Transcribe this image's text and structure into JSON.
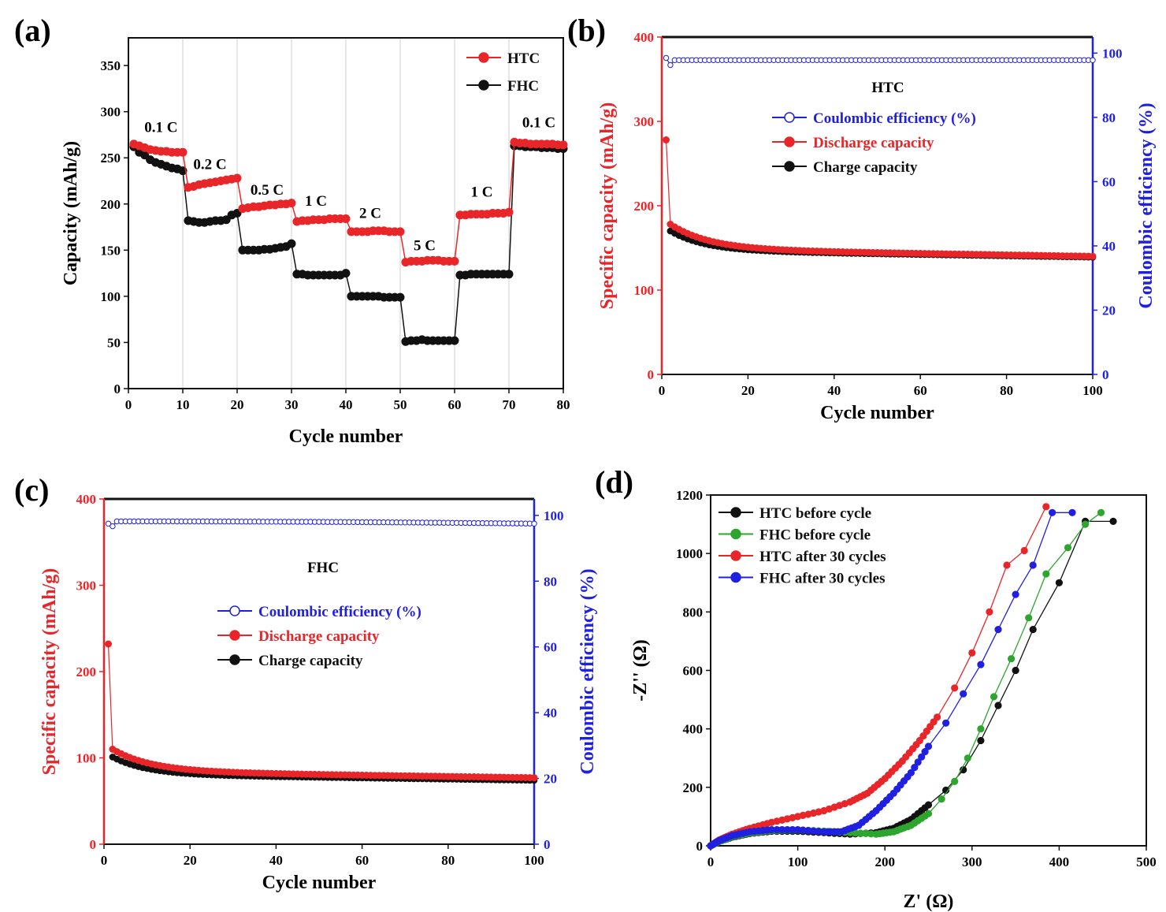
{
  "figure": {
    "colors": {
      "red": "#e8262a",
      "black": "#111111",
      "blue": "#2020e0",
      "green": "#2ea52e"
    }
  },
  "chart_data": [
    {
      "panel": "(a)",
      "type": "line",
      "xlabel": "Cycle number",
      "ylabel": "Capacity (mAh/g)",
      "xlim": [
        0,
        80
      ],
      "ylim": [
        0,
        380
      ],
      "xticks": [
        0,
        10,
        20,
        30,
        40,
        50,
        60,
        70,
        80
      ],
      "yticks": [
        0,
        50,
        100,
        150,
        200,
        250,
        300,
        350
      ],
      "grid": "vertical at every 10 cycles",
      "legend": "top-right",
      "rate_labels": [
        {
          "text": "0.1 C",
          "x": 6,
          "y": 278
        },
        {
          "text": "0.2 C",
          "x": 15,
          "y": 238
        },
        {
          "text": "0.5 C",
          "x": 25.5,
          "y": 210
        },
        {
          "text": "1 C",
          "x": 34.5,
          "y": 198
        },
        {
          "text": "2 C",
          "x": 44.5,
          "y": 185
        },
        {
          "text": "5 C",
          "x": 54.5,
          "y": 150
        },
        {
          "text": "1 C",
          "x": 65,
          "y": 208
        },
        {
          "text": "0.1 C",
          "x": 75.5,
          "y": 283
        }
      ],
      "series": [
        {
          "name": "HTC",
          "color": "#e8262a",
          "x": [
            1,
            2,
            3,
            4,
            5,
            6,
            7,
            8,
            9,
            10,
            11,
            12,
            13,
            14,
            15,
            16,
            17,
            18,
            19,
            20,
            21,
            22,
            23,
            24,
            25,
            26,
            27,
            28,
            29,
            30,
            31,
            32,
            33,
            34,
            35,
            36,
            37,
            38,
            39,
            40,
            41,
            42,
            43,
            44,
            45,
            46,
            47,
            48,
            49,
            50,
            51,
            52,
            53,
            54,
            55,
            56,
            57,
            58,
            59,
            60,
            61,
            62,
            63,
            64,
            65,
            66,
            67,
            68,
            69,
            70,
            71,
            72,
            73,
            74,
            75,
            76,
            77,
            78,
            79,
            80
          ],
          "y": [
            265,
            263,
            261,
            259,
            258,
            257,
            257,
            256,
            256,
            256,
            218,
            219,
            221,
            222,
            223,
            224,
            225,
            226,
            227,
            228,
            195,
            196,
            197,
            197,
            198,
            199,
            199,
            200,
            200,
            201,
            181,
            182,
            182,
            183,
            183,
            183,
            184,
            184,
            184,
            184,
            170,
            170,
            170,
            170,
            171,
            171,
            171,
            170,
            170,
            170,
            137,
            138,
            138,
            138,
            139,
            139,
            139,
            138,
            138,
            138,
            188,
            188,
            189,
            189,
            189,
            189,
            190,
            190,
            190,
            191,
            267,
            266,
            266,
            265,
            265,
            265,
            265,
            265,
            264,
            264
          ]
        },
        {
          "name": "FHC",
          "color": "#111111",
          "x": [
            1,
            2,
            3,
            4,
            5,
            6,
            7,
            8,
            9,
            10,
            11,
            12,
            13,
            14,
            15,
            16,
            17,
            18,
            19,
            20,
            21,
            22,
            23,
            24,
            25,
            26,
            27,
            28,
            29,
            30,
            31,
            32,
            33,
            34,
            35,
            36,
            37,
            38,
            39,
            40,
            41,
            42,
            43,
            44,
            45,
            46,
            47,
            48,
            49,
            50,
            51,
            52,
            53,
            54,
            55,
            56,
            57,
            58,
            59,
            60,
            61,
            62,
            63,
            64,
            65,
            66,
            67,
            68,
            69,
            70,
            71,
            72,
            73,
            74,
            75,
            76,
            77,
            78,
            79,
            80
          ],
          "y": [
            262,
            256,
            253,
            248,
            245,
            243,
            241,
            239,
            238,
            236,
            182,
            181,
            180,
            180,
            181,
            182,
            182,
            183,
            188,
            190,
            150,
            150,
            150,
            150,
            151,
            151,
            152,
            153,
            154,
            157,
            124,
            124,
            123,
            123,
            123,
            123,
            123,
            123,
            123,
            125,
            100,
            100,
            100,
            100,
            100,
            100,
            99,
            99,
            99,
            99,
            51,
            52,
            52,
            53,
            52,
            52,
            52,
            52,
            52,
            52,
            123,
            123,
            124,
            124,
            124,
            124,
            124,
            124,
            124,
            124,
            263,
            263,
            262,
            262,
            262,
            261,
            261,
            261,
            260,
            260
          ]
        }
      ]
    },
    {
      "panel": "(b)",
      "type": "line",
      "inset_label": "HTC",
      "xlabel": "Cycle number",
      "ylabel_left": "Specific capacity (mAh/g)",
      "ylabel_right": "Coulombic efficiency (%)",
      "xlim": [
        0,
        100
      ],
      "ylim_left": [
        0,
        400
      ],
      "ylim_right": [
        0,
        105
      ],
      "xticks": [
        0,
        20,
        40,
        60,
        80,
        100
      ],
      "yticks_left": [
        0,
        100,
        200,
        300,
        400
      ],
      "yticks_right": [
        0,
        20,
        40,
        60,
        80,
        100
      ],
      "legend": "center",
      "series": [
        {
          "name": "Coulombic efficiency (%)",
          "axis": "right",
          "color": "#2020e0",
          "first": 98.5,
          "then": 97.8,
          "end": 97.8
        },
        {
          "name": "Discharge capacity",
          "axis": "left",
          "color": "#e8262a",
          "first": 278,
          "second": 178,
          "end": 140
        },
        {
          "name": "Charge capacity",
          "axis": "left",
          "color": "#111111",
          "first": 170,
          "end": 139
        }
      ]
    },
    {
      "panel": "(c)",
      "type": "line",
      "inset_label": "FHC",
      "xlabel": "Cycle number",
      "ylabel_left": "Specific capacity (mAh/g)",
      "ylabel_right": "Coulombic efficiency (%)",
      "xlim": [
        0,
        100
      ],
      "ylim_left": [
        0,
        400
      ],
      "ylim_right": [
        0,
        105
      ],
      "xticks": [
        0,
        20,
        40,
        60,
        80,
        100
      ],
      "yticks_left": [
        0,
        100,
        200,
        300,
        400
      ],
      "yticks_right": [
        0,
        20,
        40,
        60,
        80,
        100
      ],
      "legend": "center",
      "series": [
        {
          "name": "Coulombic efficiency (%)",
          "axis": "right",
          "color": "#2020e0",
          "first": 97.5,
          "then": 98.2,
          "end": 97.5
        },
        {
          "name": "Discharge capacity",
          "axis": "left",
          "color": "#e8262a",
          "first": 232,
          "second": 110,
          "end": 77
        },
        {
          "name": "Charge capacity",
          "axis": "left",
          "color": "#111111",
          "first": 101,
          "end": 74
        }
      ]
    },
    {
      "panel": "(d)",
      "type": "scatter",
      "xlabel": "Z' (Ω)",
      "ylabel": "-Z'' (Ω)",
      "xlim": [
        0,
        500
      ],
      "ylim": [
        0,
        1200
      ],
      "xticks": [
        0,
        100,
        200,
        300,
        400,
        500
      ],
      "yticks": [
        0,
        200,
        400,
        600,
        800,
        1000,
        1200
      ],
      "legend": "top-left",
      "series": [
        {
          "name": "HTC before cycle",
          "color": "#111111",
          "x": [
            0,
            10,
            25,
            45,
            70,
            100,
            130,
            160,
            190,
            210,
            230,
            250,
            270,
            290,
            310,
            330,
            350,
            370,
            400,
            430,
            462
          ],
          "y": [
            0,
            15,
            30,
            42,
            50,
            50,
            45,
            40,
            45,
            60,
            90,
            140,
            190,
            260,
            360,
            480,
            600,
            740,
            900,
            1110,
            1110
          ]
        },
        {
          "name": "FHC before cycle",
          "color": "#2ea52e",
          "x": [
            0,
            10,
            25,
            45,
            70,
            100,
            130,
            160,
            190,
            210,
            230,
            250,
            265,
            280,
            295,
            310,
            325,
            345,
            365,
            385,
            410,
            430,
            448
          ],
          "y": [
            0,
            15,
            32,
            44,
            52,
            54,
            50,
            45,
            40,
            48,
            70,
            110,
            160,
            220,
            300,
            400,
            510,
            640,
            780,
            930,
            1020,
            1100,
            1140
          ]
        },
        {
          "name": "HTC after 30 cycles",
          "color": "#e8262a",
          "x": [
            0,
            10,
            25,
            45,
            70,
            100,
            130,
            160,
            180,
            200,
            220,
            240,
            260,
            280,
            300,
            320,
            340,
            360,
            385
          ],
          "y": [
            0,
            20,
            40,
            60,
            80,
            100,
            120,
            150,
            180,
            230,
            290,
            360,
            440,
            540,
            660,
            800,
            960,
            1010,
            1160
          ]
        },
        {
          "name": "FHC after 30 cycles",
          "color": "#2020e0",
          "x": [
            0,
            10,
            25,
            45,
            70,
            100,
            130,
            150,
            170,
            190,
            210,
            230,
            250,
            270,
            290,
            310,
            330,
            350,
            370,
            392,
            415
          ],
          "y": [
            0,
            18,
            35,
            48,
            55,
            55,
            48,
            48,
            70,
            120,
            180,
            250,
            340,
            420,
            520,
            620,
            740,
            860,
            960,
            1140,
            1140
          ]
        }
      ]
    }
  ]
}
